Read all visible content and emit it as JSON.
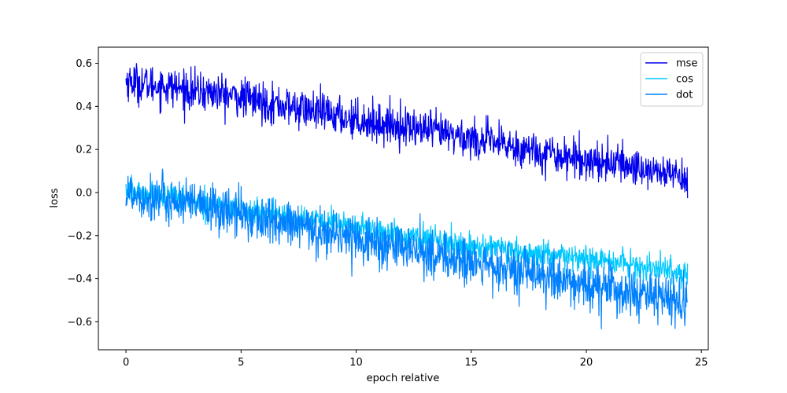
{
  "chart_data": {
    "type": "line",
    "xlabel": "epoch relative",
    "ylabel": "loss",
    "xlim": [
      -1.2,
      25.3
    ],
    "ylim": [
      -0.73,
      0.675
    ],
    "x_ticks": [
      0,
      5,
      10,
      15,
      20,
      25
    ],
    "y_ticks": [
      -0.6,
      -0.4,
      -0.2,
      0.0,
      0.2,
      0.4,
      0.6
    ],
    "y_tick_labels": [
      "−0.6",
      "−0.4",
      "−0.2",
      "0.0",
      "0.2",
      "0.4",
      "0.6"
    ],
    "grid": false,
    "legend_position": "top-right",
    "series": [
      {
        "name": "mse",
        "color": "#0000ee",
        "x": [
          0,
          1,
          2,
          3,
          4,
          5,
          6,
          7,
          8,
          9,
          10,
          11,
          12,
          13,
          14,
          15,
          16,
          17,
          18,
          19,
          20,
          21,
          22,
          23,
          24,
          24.4
        ],
        "values": [
          0.52,
          0.5,
          0.49,
          0.47,
          0.46,
          0.44,
          0.42,
          0.4,
          0.38,
          0.36,
          0.34,
          0.32,
          0.31,
          0.29,
          0.27,
          0.25,
          0.23,
          0.21,
          0.19,
          0.17,
          0.15,
          0.14,
          0.12,
          0.1,
          0.08,
          0.07
        ],
        "noise": 0.045
      },
      {
        "name": "cos",
        "color": "#00c8ff",
        "x": [
          0,
          1,
          2,
          3,
          4,
          5,
          6,
          7,
          8,
          9,
          10,
          11,
          12,
          13,
          14,
          15,
          16,
          17,
          18,
          19,
          20,
          21,
          22,
          23,
          24,
          24.4
        ],
        "values": [
          0.01,
          -0.01,
          -0.02,
          -0.04,
          -0.06,
          -0.08,
          -0.1,
          -0.11,
          -0.13,
          -0.14,
          -0.16,
          -0.18,
          -0.2,
          -0.21,
          -0.23,
          -0.25,
          -0.26,
          -0.28,
          -0.29,
          -0.3,
          -0.31,
          -0.32,
          -0.34,
          -0.35,
          -0.37,
          -0.38
        ],
        "noise": 0.03
      },
      {
        "name": "dot",
        "color": "#0080ff",
        "x": [
          0,
          1,
          2,
          3,
          4,
          5,
          6,
          7,
          8,
          9,
          10,
          11,
          12,
          13,
          14,
          15,
          16,
          17,
          18,
          19,
          20,
          21,
          22,
          23,
          24,
          24.4
        ],
        "values": [
          0.0,
          -0.02,
          -0.04,
          -0.06,
          -0.08,
          -0.1,
          -0.13,
          -0.15,
          -0.17,
          -0.19,
          -0.21,
          -0.24,
          -0.26,
          -0.28,
          -0.3,
          -0.33,
          -0.35,
          -0.37,
          -0.39,
          -0.41,
          -0.43,
          -0.45,
          -0.47,
          -0.49,
          -0.51,
          -0.52
        ],
        "noise": 0.055
      }
    ]
  }
}
